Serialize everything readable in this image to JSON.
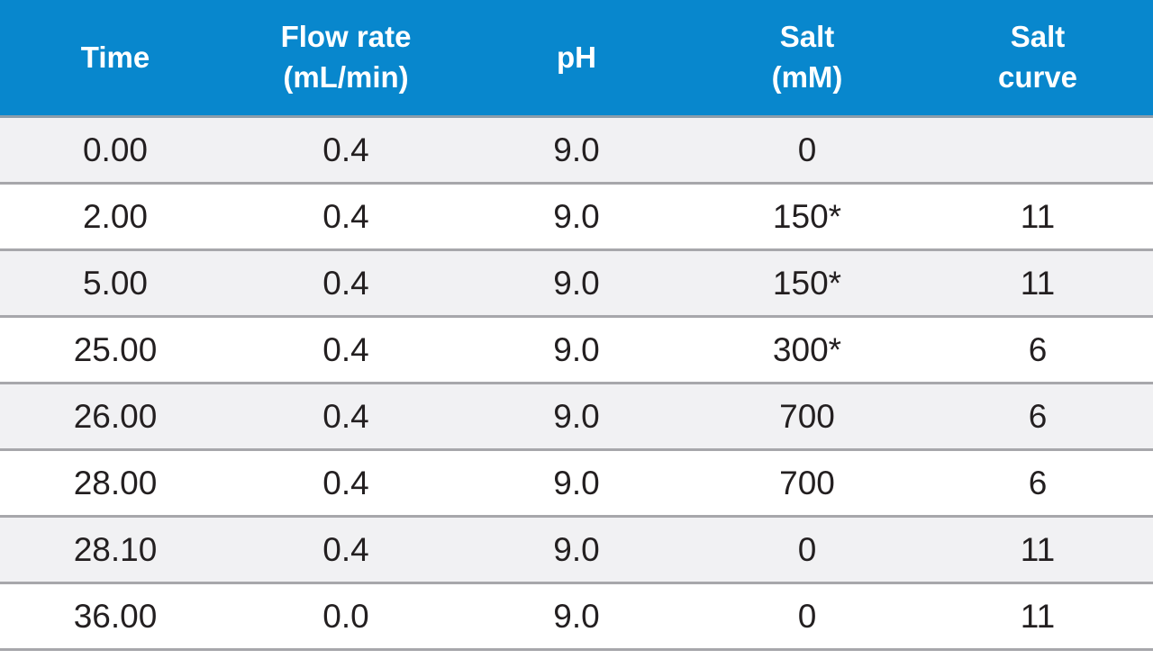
{
  "table": {
    "columns": [
      {
        "line1": "Time",
        "line2": ""
      },
      {
        "line1": "Flow rate",
        "line2": "(mL/min)"
      },
      {
        "line1": "pH",
        "line2": ""
      },
      {
        "line1": "Salt",
        "line2": "(mM)"
      },
      {
        "line1": "Salt",
        "line2": "curve"
      }
    ],
    "rows": [
      [
        "0.00",
        "0.4",
        "9.0",
        "0",
        ""
      ],
      [
        "2.00",
        "0.4",
        "9.0",
        "150*",
        "11"
      ],
      [
        "5.00",
        "0.4",
        "9.0",
        "150*",
        "11"
      ],
      [
        "25.00",
        "0.4",
        "9.0",
        "300*",
        "6"
      ],
      [
        "26.00",
        "0.4",
        "9.0",
        "700",
        "6"
      ],
      [
        "28.00",
        "0.4",
        "9.0",
        "700",
        "6"
      ],
      [
        "28.10",
        "0.4",
        "9.0",
        "0",
        "11"
      ],
      [
        "36.00",
        "0.0",
        "9.0",
        "0",
        "11"
      ]
    ]
  },
  "colors": {
    "header_background": "#0887cd",
    "header_text": "#ffffff",
    "row_alt_background": "#f1f1f3",
    "row_background": "#ffffff",
    "row_border": "#a7a7ab",
    "body_text": "#231f20"
  }
}
